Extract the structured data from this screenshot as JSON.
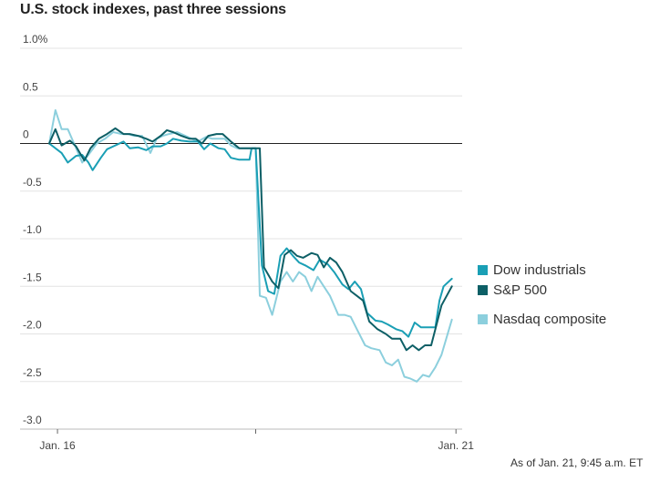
{
  "title": "U.S. stock indexes, past three sessions",
  "timestamp": "As of Jan. 21, 9:45 a.m. ET",
  "chart_data": {
    "type": "line",
    "ylim": [
      -3.0,
      1.0
    ],
    "y_ticks": [
      {
        "value": 1.0,
        "label": "1.0%"
      },
      {
        "value": 0.5,
        "label": "0.5"
      },
      {
        "value": 0,
        "label": "0"
      },
      {
        "value": -0.5,
        "label": "-0.5"
      },
      {
        "value": -1.0,
        "label": "-1.0"
      },
      {
        "value": -1.5,
        "label": "-1.5"
      },
      {
        "value": -2.0,
        "label": "-2.0"
      },
      {
        "value": -2.5,
        "label": "-2.5"
      },
      {
        "value": -3.0,
        "label": "-3.0"
      }
    ],
    "x_ticks": [
      {
        "position": 0.02,
        "label": "Jan. 16"
      },
      {
        "position": 0.5,
        "label": ""
      },
      {
        "position": 0.985,
        "label": "Jan. 21"
      }
    ],
    "grid": true,
    "legend": "right",
    "series": [
      {
        "name": "Dow industrials",
        "color": "#1a9fb5",
        "points": [
          [
            0,
            0
          ],
          [
            0.03,
            -0.1
          ],
          [
            0.045,
            -0.2
          ],
          [
            0.065,
            -0.13
          ],
          [
            0.08,
            -0.12
          ],
          [
            0.095,
            -0.2
          ],
          [
            0.105,
            -0.28
          ],
          [
            0.125,
            -0.15
          ],
          [
            0.14,
            -0.06
          ],
          [
            0.16,
            -0.02
          ],
          [
            0.18,
            0.02
          ],
          [
            0.195,
            -0.05
          ],
          [
            0.215,
            -0.04
          ],
          [
            0.235,
            -0.07
          ],
          [
            0.25,
            -0.03
          ],
          [
            0.27,
            -0.03
          ],
          [
            0.285,
            0.0
          ],
          [
            0.3,
            0.05
          ],
          [
            0.32,
            0.03
          ],
          [
            0.34,
            0.02
          ],
          [
            0.36,
            0.02
          ],
          [
            0.375,
            -0.06
          ],
          [
            0.39,
            0.0
          ],
          [
            0.41,
            -0.05
          ],
          [
            0.425,
            -0.06
          ],
          [
            0.44,
            -0.15
          ],
          [
            0.46,
            -0.17
          ],
          [
            0.485,
            -0.17
          ],
          [
            0.49,
            -0.05
          ],
          [
            0.5,
            -0.05
          ],
          [
            0.515,
            -1.28
          ],
          [
            0.53,
            -1.55
          ],
          [
            0.545,
            -1.58
          ],
          [
            0.56,
            -1.18
          ],
          [
            0.575,
            -1.1
          ],
          [
            0.59,
            -1.18
          ],
          [
            0.605,
            -1.25
          ],
          [
            0.62,
            -1.28
          ],
          [
            0.64,
            -1.33
          ],
          [
            0.655,
            -1.22
          ],
          [
            0.675,
            -1.27
          ],
          [
            0.69,
            -1.35
          ],
          [
            0.71,
            -1.48
          ],
          [
            0.725,
            -1.53
          ],
          [
            0.74,
            -1.45
          ],
          [
            0.755,
            -1.53
          ],
          [
            0.77,
            -1.78
          ],
          [
            0.79,
            -1.86
          ],
          [
            0.805,
            -1.87
          ],
          [
            0.82,
            -1.9
          ],
          [
            0.84,
            -1.95
          ],
          [
            0.855,
            -1.97
          ],
          [
            0.87,
            -2.03
          ],
          [
            0.885,
            -1.88
          ],
          [
            0.9,
            -1.93
          ],
          [
            0.915,
            -1.93
          ],
          [
            0.935,
            -1.93
          ],
          [
            0.945,
            -1.65
          ],
          [
            0.955,
            -1.5
          ],
          [
            0.975,
            -1.42
          ]
        ]
      },
      {
        "name": "S&P 500",
        "color": "#0d5f66",
        "points": [
          [
            0,
            0
          ],
          [
            0.015,
            0.15
          ],
          [
            0.03,
            -0.02
          ],
          [
            0.05,
            0.03
          ],
          [
            0.065,
            -0.03
          ],
          [
            0.085,
            -0.18
          ],
          [
            0.1,
            -0.05
          ],
          [
            0.12,
            0.05
          ],
          [
            0.14,
            0.1
          ],
          [
            0.16,
            0.16
          ],
          [
            0.18,
            0.1
          ],
          [
            0.195,
            0.1
          ],
          [
            0.215,
            0.08
          ],
          [
            0.235,
            0.05
          ],
          [
            0.25,
            0.02
          ],
          [
            0.27,
            0.08
          ],
          [
            0.285,
            0.14
          ],
          [
            0.3,
            0.12
          ],
          [
            0.32,
            0.08
          ],
          [
            0.34,
            0.05
          ],
          [
            0.355,
            0.05
          ],
          [
            0.37,
            0.0
          ],
          [
            0.385,
            0.08
          ],
          [
            0.405,
            0.1
          ],
          [
            0.42,
            0.1
          ],
          [
            0.44,
            0.02
          ],
          [
            0.46,
            -0.05
          ],
          [
            0.47,
            -0.05
          ],
          [
            0.49,
            -0.05
          ],
          [
            0.51,
            -0.05
          ],
          [
            0.52,
            -1.3
          ],
          [
            0.54,
            -1.45
          ],
          [
            0.555,
            -1.52
          ],
          [
            0.57,
            -1.17
          ],
          [
            0.585,
            -1.12
          ],
          [
            0.6,
            -1.18
          ],
          [
            0.615,
            -1.2
          ],
          [
            0.635,
            -1.15
          ],
          [
            0.65,
            -1.17
          ],
          [
            0.665,
            -1.3
          ],
          [
            0.68,
            -1.2
          ],
          [
            0.695,
            -1.25
          ],
          [
            0.71,
            -1.35
          ],
          [
            0.73,
            -1.55
          ],
          [
            0.745,
            -1.6
          ],
          [
            0.76,
            -1.65
          ],
          [
            0.775,
            -1.87
          ],
          [
            0.795,
            -1.95
          ],
          [
            0.815,
            -2.0
          ],
          [
            0.83,
            -2.05
          ],
          [
            0.85,
            -2.05
          ],
          [
            0.865,
            -2.17
          ],
          [
            0.88,
            -2.12
          ],
          [
            0.895,
            -2.17
          ],
          [
            0.91,
            -2.12
          ],
          [
            0.925,
            -2.12
          ],
          [
            0.935,
            -1.95
          ],
          [
            0.95,
            -1.7
          ],
          [
            0.975,
            -1.5
          ]
        ]
      },
      {
        "name": "Nasdaq composite",
        "color": "#8ccfdd",
        "points": [
          [
            0,
            0
          ],
          [
            0.015,
            0.35
          ],
          [
            0.03,
            0.15
          ],
          [
            0.045,
            0.15
          ],
          [
            0.06,
            0.0
          ],
          [
            0.08,
            -0.2
          ],
          [
            0.095,
            -0.12
          ],
          [
            0.115,
            0.0
          ],
          [
            0.135,
            0.05
          ],
          [
            0.155,
            0.12
          ],
          [
            0.175,
            0.1
          ],
          [
            0.19,
            0.1
          ],
          [
            0.205,
            0.08
          ],
          [
            0.225,
            0.08
          ],
          [
            0.245,
            -0.1
          ],
          [
            0.26,
            0.05
          ],
          [
            0.275,
            0.08
          ],
          [
            0.29,
            0.1
          ],
          [
            0.31,
            0.12
          ],
          [
            0.33,
            0.08
          ],
          [
            0.345,
            0.05
          ],
          [
            0.36,
            0.02
          ],
          [
            0.38,
            0.07
          ],
          [
            0.395,
            0.05
          ],
          [
            0.41,
            0.05
          ],
          [
            0.425,
            0.05
          ],
          [
            0.44,
            -0.02
          ],
          [
            0.455,
            -0.05
          ],
          [
            0.48,
            -0.05
          ],
          [
            0.5,
            -0.05
          ],
          [
            0.51,
            -1.6
          ],
          [
            0.525,
            -1.62
          ],
          [
            0.54,
            -1.8
          ],
          [
            0.56,
            -1.45
          ],
          [
            0.575,
            -1.35
          ],
          [
            0.59,
            -1.45
          ],
          [
            0.605,
            -1.35
          ],
          [
            0.62,
            -1.4
          ],
          [
            0.635,
            -1.55
          ],
          [
            0.65,
            -1.4
          ],
          [
            0.665,
            -1.5
          ],
          [
            0.68,
            -1.6
          ],
          [
            0.7,
            -1.8
          ],
          [
            0.715,
            -1.8
          ],
          [
            0.73,
            -1.82
          ],
          [
            0.745,
            -1.95
          ],
          [
            0.765,
            -2.12
          ],
          [
            0.78,
            -2.15
          ],
          [
            0.8,
            -2.17
          ],
          [
            0.815,
            -2.3
          ],
          [
            0.83,
            -2.33
          ],
          [
            0.845,
            -2.27
          ],
          [
            0.86,
            -2.45
          ],
          [
            0.875,
            -2.47
          ],
          [
            0.89,
            -2.5
          ],
          [
            0.905,
            -2.43
          ],
          [
            0.92,
            -2.45
          ],
          [
            0.935,
            -2.35
          ],
          [
            0.95,
            -2.22
          ],
          [
            0.975,
            -1.85
          ]
        ]
      }
    ]
  }
}
